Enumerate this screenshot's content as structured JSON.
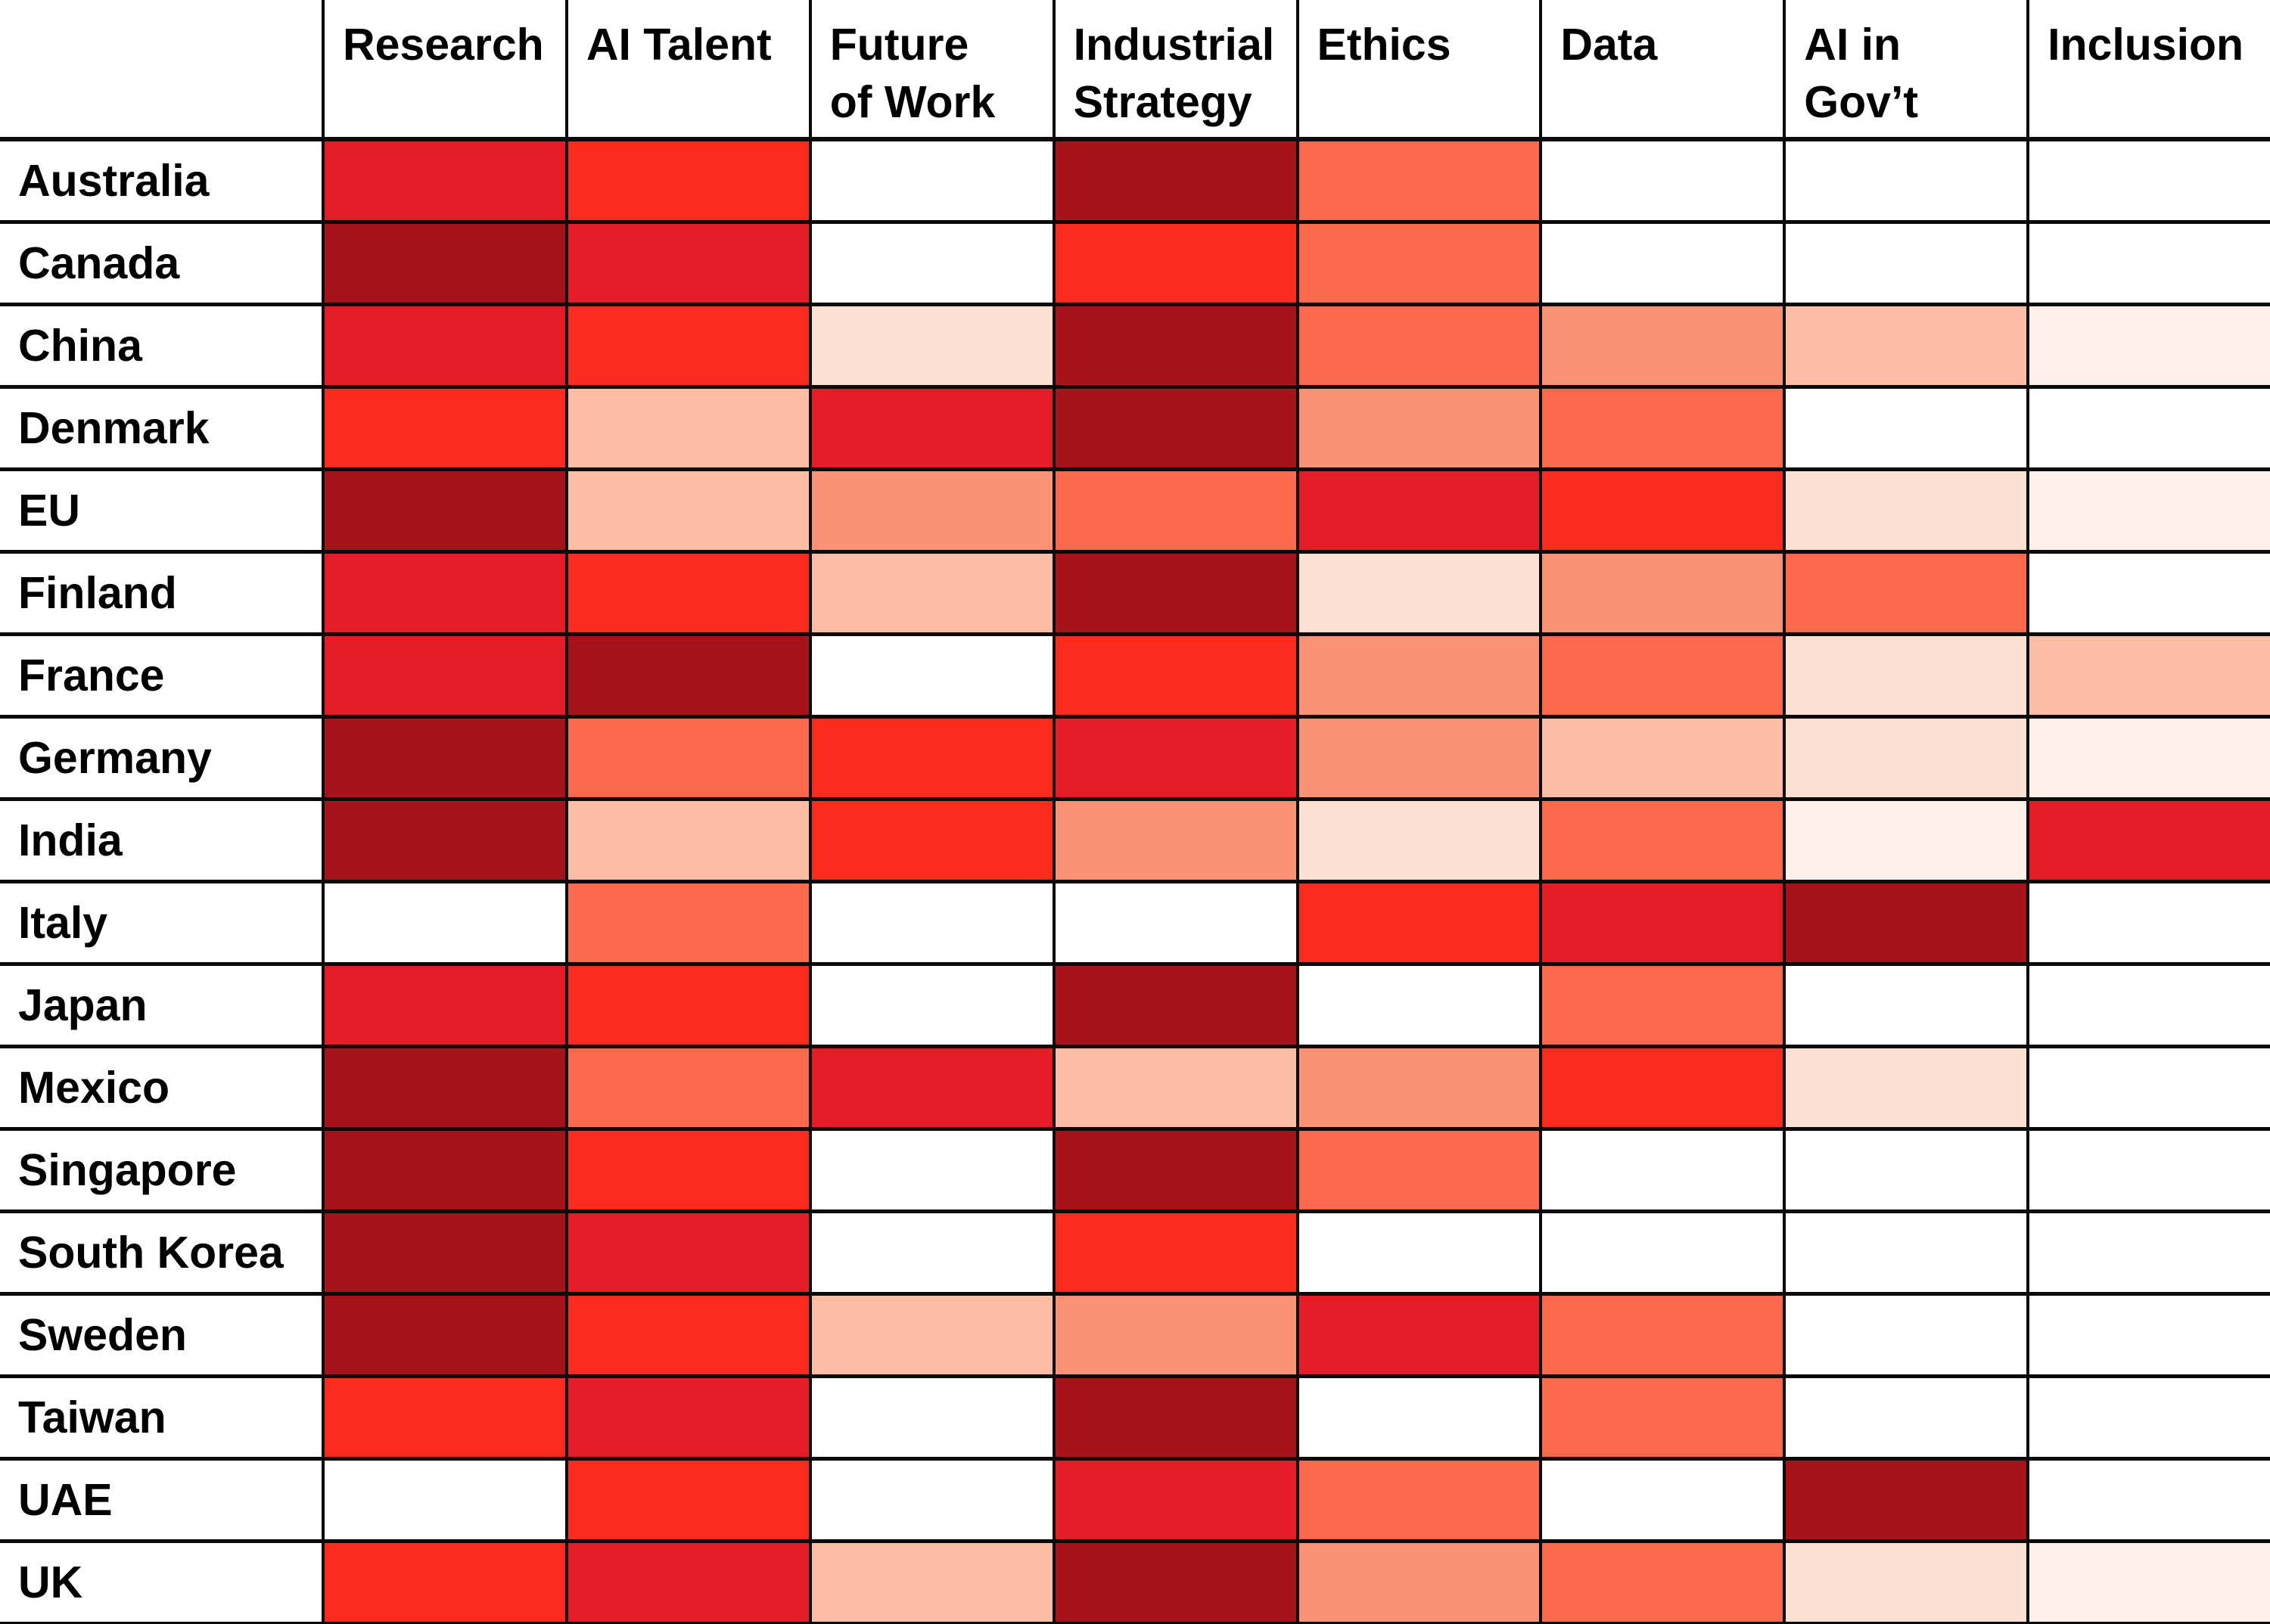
{
  "chart_data": {
    "type": "heatmap",
    "title": "",
    "columns": [
      "Research",
      "AI Talent",
      "Future\nof Work",
      "Industrial\nStrategy",
      "Ethics",
      "Data",
      "AI in\nGov’t",
      "Inclusion"
    ],
    "rows": [
      "Australia",
      "Canada",
      "China",
      "Denmark",
      "EU",
      "Finland",
      "France",
      "Germany",
      "India",
      "Italy",
      "Japan",
      "Mexico",
      "Singapore",
      "South Korea",
      "Sweden",
      "Taiwan",
      "UAE",
      "UK"
    ],
    "values": [
      [
        7,
        6,
        0,
        8,
        5,
        0,
        0,
        0
      ],
      [
        8,
        7,
        0,
        6,
        5,
        0,
        0,
        0
      ],
      [
        7,
        6,
        2,
        8,
        5,
        4,
        3,
        1
      ],
      [
        6,
        3,
        7,
        8,
        4,
        5,
        0,
        0
      ],
      [
        8,
        3,
        4,
        5,
        7,
        6,
        2,
        1
      ],
      [
        7,
        6,
        3,
        8,
        2,
        4,
        5,
        0
      ],
      [
        7,
        8,
        0,
        6,
        4,
        5,
        2,
        3
      ],
      [
        8,
        5,
        6,
        7,
        4,
        3,
        2,
        1
      ],
      [
        8,
        3,
        6,
        4,
        2,
        5,
        1,
        7
      ],
      [
        0,
        5,
        0,
        0,
        6,
        7,
        8,
        0
      ],
      [
        7,
        6,
        0,
        8,
        0,
        5,
        0,
        0
      ],
      [
        8,
        5,
        7,
        3,
        4,
        6,
        2,
        0
      ],
      [
        8,
        6,
        0,
        8,
        5,
        0,
        0,
        0
      ],
      [
        8,
        7,
        0,
        6,
        0,
        0,
        0,
        0
      ],
      [
        8,
        6,
        3,
        4,
        7,
        5,
        0,
        0
      ],
      [
        6,
        7,
        0,
        8,
        0,
        5,
        0,
        0
      ],
      [
        0,
        6,
        0,
        7,
        5,
        0,
        8,
        0
      ],
      [
        6,
        7,
        3,
        8,
        4,
        5,
        2,
        1
      ]
    ],
    "palette": [
      "#ffffff",
      "#fdf0e9",
      "#fce0d1",
      "#fbbda4",
      "#fa9375",
      "#fa694c",
      "#fa2b1d",
      "#e51c25",
      "#a6131b"
    ],
    "scale_note": "cell color encodes intensity rank 0 (blank) to 8 (darkest red)",
    "grid": true,
    "legend_position": "none"
  }
}
